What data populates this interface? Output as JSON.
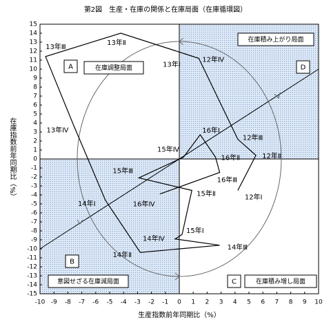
{
  "chart_data": {
    "type": "line",
    "title": "第2図　生産・在庫の関係と在庫局面（在庫循環図）",
    "x_label": "生産指数前年同期比（%）",
    "y_label": "在庫指数前年同期比（%）",
    "xlim": [
      -10,
      10
    ],
    "ylim": [
      -15,
      15
    ],
    "xticks": [
      -10,
      -9,
      -8,
      -7,
      -6,
      -5,
      -4,
      -3,
      -2,
      -1,
      0,
      1,
      2,
      3,
      4,
      5,
      6,
      7,
      8,
      9,
      10
    ],
    "yticks": [
      -15,
      -14,
      -13,
      -12,
      -11,
      -10,
      -9,
      -8,
      -7,
      -6,
      -5,
      -4,
      -3,
      -2,
      -1,
      0,
      1,
      2,
      3,
      4,
      5,
      6,
      7,
      8,
      9,
      10,
      11,
      12,
      13,
      14,
      15
    ],
    "color": "#000000",
    "point_labels": [
      "12年Ⅰ",
      "12年Ⅱ",
      "12年Ⅲ",
      "12年Ⅳ",
      "13年Ⅰ",
      "13年Ⅱ",
      "13年Ⅲ",
      "13年Ⅳ",
      "14年Ⅰ",
      "14年Ⅱ",
      "14年Ⅲ",
      "14年Ⅳ",
      "15年Ⅰ",
      "15年Ⅱ",
      "15年Ⅲ",
      "15年Ⅳ",
      "16年Ⅰ",
      "16年Ⅱ",
      "16年Ⅲ",
      "16年Ⅳ"
    ],
    "x": [
      4.2,
      5.5,
      4.2,
      1.4,
      0.8,
      -4.2,
      -9.6,
      -7.6,
      -5.3,
      -2.8,
      2.9,
      -0.3,
      0.2,
      0.9,
      -2.9,
      0.3,
      1.5,
      2.6,
      2.9,
      -1.4
    ],
    "values": [
      -3.5,
      0.4,
      2.2,
      11.2,
      11.5,
      14,
      11.4,
      3.8,
      -4.6,
      -10.4,
      -9.6,
      -8.9,
      -8.4,
      -3.5,
      -2.1,
      0.2,
      2.7,
      0.2,
      -1.5,
      -3.9
    ],
    "quadrants": [
      {
        "letter": "A",
        "text": "在庫調整局面"
      },
      {
        "letter": "B",
        "text": "意図せざる在庫減局面"
      },
      {
        "letter": "C",
        "text": "在庫積み増し局面"
      },
      {
        "letter": "D",
        "text": "在庫積み上がり局面"
      }
    ]
  }
}
